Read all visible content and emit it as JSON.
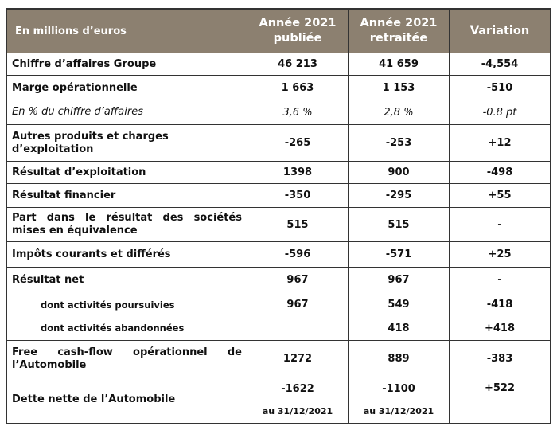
{
  "header": {
    "label": "En millions d’euros",
    "col1": "Année 2021 publiée",
    "col2": "Année 2021 retraitée",
    "col3": "Variation"
  },
  "rows": [
    {
      "label": "Chiffre d’affaires Groupe",
      "a": "46 213",
      "b": "41 659",
      "v": "-4,554"
    },
    {
      "label": "Marge opérationnelle",
      "a": "1 663",
      "b": "1 153",
      "v": "-510"
    },
    {
      "label": "En % du chiffre d’affaires",
      "a": "3,6 %",
      "b": "2,8 %",
      "v": "-0.8 pt"
    },
    {
      "label": "Autres produits et charges d’exploitation",
      "a": "-265",
      "b": "-253",
      "v": "+12"
    },
    {
      "label": "Résultat d’exploitation",
      "a": "1398",
      "b": "900",
      "v": "-498"
    },
    {
      "label": "Résultat financier",
      "a": "-350",
      "b": "-295",
      "v": "+55"
    },
    {
      "label": "Part dans le résultat des sociétés mises en équivalence",
      "a": "515",
      "b": "515",
      "v": "-"
    },
    {
      "label": "Impôts courants et différés",
      "a": "-596",
      "b": "-571",
      "v": "+25"
    },
    {
      "label": "Résultat net",
      "a": "967",
      "b": "967",
      "v": "-"
    },
    {
      "label": "dont activités poursuivies",
      "a": "967",
      "b": "549",
      "v": "-418"
    },
    {
      "label": "dont activités abandonnées",
      "a": "",
      "b": "418",
      "v": "+418"
    },
    {
      "label": "Free cash-flow opérationnel de l’Automobile",
      "a": "1272",
      "b": "889",
      "v": "-383"
    },
    {
      "label": "Dette nette de l’Automobile",
      "a": "-1622",
      "b": "-1100",
      "v": "+522",
      "a_note": "au 31/12/2021",
      "b_note": "au 31/12/2021"
    }
  ]
}
